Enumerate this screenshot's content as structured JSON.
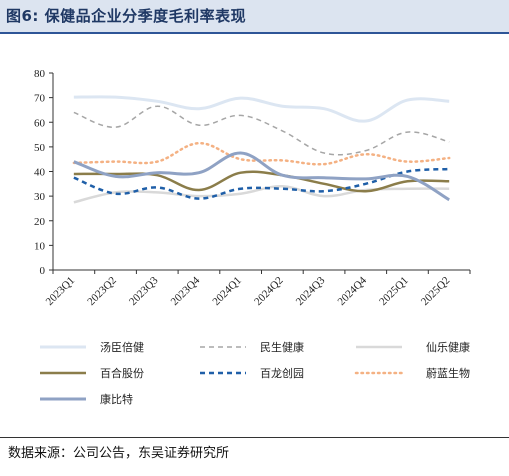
{
  "header": {
    "title": "图6:  保健品企业分季度毛利率表现"
  },
  "footer": {
    "source": "数据来源：公司公告，东吴证券研究所"
  },
  "chart_data": {
    "type": "line",
    "title": "保健品企业分季度毛利率表现",
    "xlabel": "",
    "ylabel": "",
    "ylim": [
      0,
      80
    ],
    "yticks": [
      0,
      10,
      20,
      30,
      40,
      50,
      60,
      70,
      80
    ],
    "grid": false,
    "legend_position": "bottom",
    "categories": [
      "2023Q1",
      "2023Q2",
      "2023Q3",
      "2023Q4",
      "2024Q1",
      "2024Q2",
      "2024Q3",
      "2024Q4",
      "2025Q1",
      "2025Q2"
    ],
    "series": [
      {
        "name": "汤臣倍健",
        "color": "#dce6f2",
        "dash": "solid",
        "width": 3,
        "values": [
          70.2,
          70.2,
          68.5,
          65.5,
          69.8,
          66.5,
          65.5,
          60.5,
          69.0,
          68.5
        ]
      },
      {
        "name": "民生健康",
        "color": "#a6a6a6",
        "dash": "5,4",
        "width": 1.5,
        "values": [
          64.0,
          58.0,
          66.5,
          58.8,
          62.8,
          56.5,
          47.5,
          48.5,
          56.0,
          52.0
        ]
      },
      {
        "name": "仙乐健康",
        "color": "#d9d9d9",
        "dash": "solid",
        "width": 2.5,
        "values": [
          27.5,
          31.5,
          31.5,
          30.0,
          31.0,
          34.0,
          30.0,
          32.5,
          33.0,
          33.0
        ]
      },
      {
        "name": "百合股份",
        "color": "#8b7d4a",
        "dash": "solid",
        "width": 2.5,
        "values": [
          39.0,
          39.0,
          38.5,
          32.5,
          39.5,
          38.5,
          35.0,
          32.0,
          36.0,
          36.0
        ]
      },
      {
        "name": "百龙创园",
        "color": "#1f5fa8",
        "dash": "5,4",
        "width": 2.5,
        "values": [
          37.5,
          31.0,
          33.5,
          29.0,
          33.0,
          33.0,
          32.0,
          35.0,
          40.0,
          41.0
        ]
      },
      {
        "name": "蔚蓝生物",
        "color": "#f4b183",
        "dash": "1.5,4",
        "width": 2.5,
        "values": [
          43.5,
          44.0,
          44.0,
          51.5,
          45.0,
          44.5,
          43.0,
          47.0,
          44.0,
          45.5
        ]
      },
      {
        "name": "康比特",
        "color": "#8fa2c4",
        "dash": "solid",
        "width": 3,
        "values": [
          44.0,
          38.0,
          39.5,
          39.5,
          47.5,
          38.5,
          37.5,
          37.0,
          38.0,
          28.5
        ]
      }
    ]
  }
}
